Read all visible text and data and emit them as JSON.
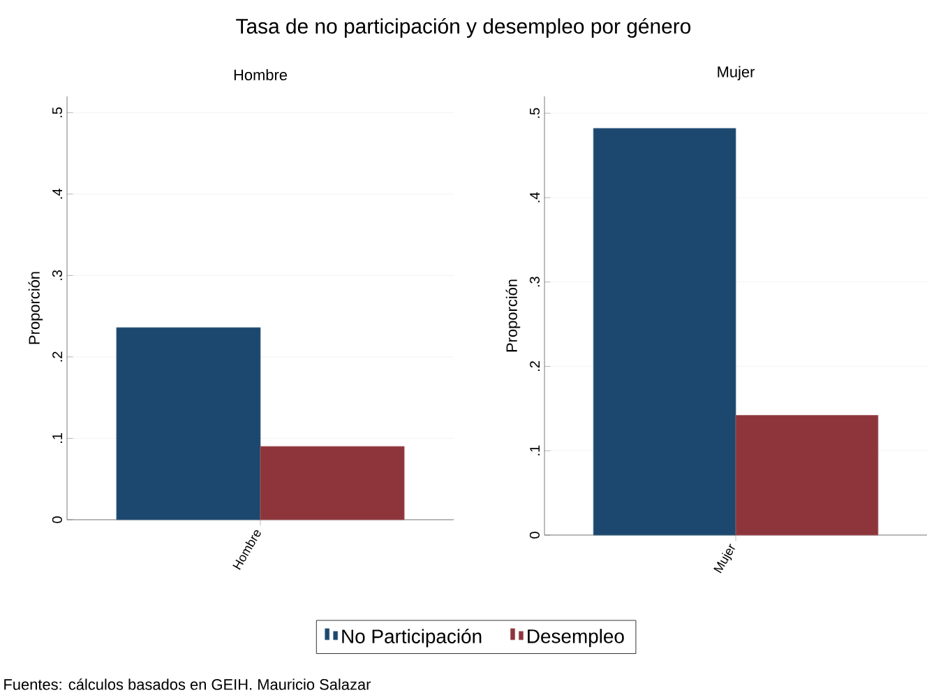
{
  "chart_data": [
    {
      "type": "bar",
      "title": "Tasa de no participación y desempleo por género",
      "subtitle": "Hombre",
      "ylabel": "Proporción",
      "categories": [
        "Hombre"
      ],
      "series": [
        {
          "name": "No Participación",
          "color": "#1c476e",
          "values": [
            0.236
          ]
        },
        {
          "name": "Desempleo",
          "color": "#8e353c",
          "values": [
            0.09
          ]
        }
      ],
      "ylim": [
        0,
        0.52
      ],
      "yticks": [
        0,
        {
          "value": 0.1,
          "label": ".1"
        },
        {
          "value": 0.2,
          "label": ".2"
        },
        {
          "value": 0.3,
          "label": ".3"
        },
        {
          "value": 0.4,
          "label": ".4"
        },
        {
          "value": 0.5,
          "label": ".5"
        }
      ],
      "grid": "y",
      "legend": "bottom",
      "annotations": [
        "Fuentes: cálculos basados en GEIH. Mauricio Salazar"
      ]
    },
    {
      "type": "bar",
      "subtitle": "Mujer",
      "ylabel": "Proporción",
      "categories": [
        "Mujer"
      ],
      "series": [
        {
          "color": "#1c476e",
          "values": [
            0.482
          ]
        },
        {
          "color": "#8e353c",
          "values": [
            0.142
          ]
        }
      ],
      "ylim": [
        0,
        0.52
      ],
      "yticks": [
        0,
        {
          "value": 0.1,
          "label": ".1"
        },
        {
          "value": 0.2,
          "label": ".2"
        },
        {
          "value": 0.3,
          "label": ".3"
        },
        {
          "value": 0.4,
          "label": ".4"
        },
        {
          "value": 0.5,
          "label": ".5"
        }
      ],
      "grid": "y"
    }
  ]
}
